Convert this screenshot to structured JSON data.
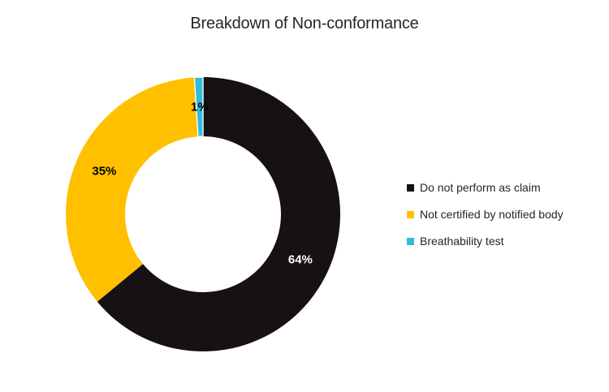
{
  "chart_data": {
    "type": "pie",
    "subtype": "doughnut",
    "title": "Breakdown of Non-conformance",
    "categories": [
      "Do not perform as claim",
      "Not certified by notified body",
      "Breathability test"
    ],
    "values": [
      64,
      35,
      1
    ],
    "unit": "%",
    "slice_labels": [
      "64%",
      "35%",
      "1%"
    ],
    "colors": [
      "#171115",
      "#FFC000",
      "#2FBCDF"
    ],
    "slice_strokes": [
      null,
      null,
      "#FFFFFF"
    ],
    "label_colors": [
      "#FFFFFF",
      "#000000",
      "#000000"
    ],
    "start_angle_deg": 0,
    "direction": "clockwise",
    "hole_ratio": 0.57,
    "legend_position": "right",
    "grid": false
  },
  "legend": {
    "items": [
      {
        "label": "Do not perform as claim",
        "color": "#171115"
      },
      {
        "label": "Not certified by notified body",
        "color": "#FFC000"
      },
      {
        "label": "Breathability test",
        "color": "#2FBCDF"
      }
    ]
  }
}
